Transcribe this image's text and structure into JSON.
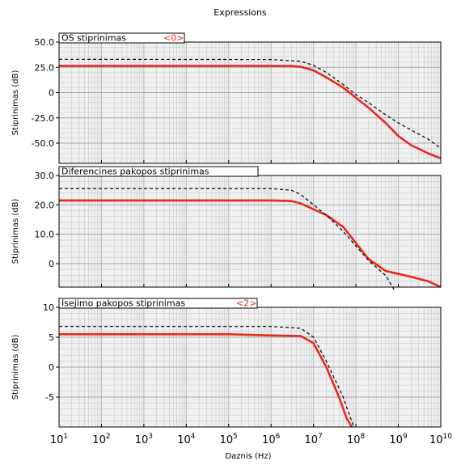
{
  "window_title": "Expressions",
  "x_axis": {
    "label": "Daznis (Hz)",
    "scale": "log",
    "range": [
      10,
      10000000000
    ],
    "tick_exponents": [
      1,
      2,
      3,
      4,
      5,
      6,
      7,
      8,
      9,
      10
    ],
    "tick_base": "10"
  },
  "colors": {
    "series_solid": "#e8291f",
    "series_dashed": "#000000",
    "grid": "#c8c8c8",
    "plot_bg": "#f0f0f0"
  },
  "chart_data": [
    {
      "type": "line",
      "tab_label": "OS stiprinimas",
      "tab_marker": "<0>",
      "ylabel": "Stiprinimas (dB)",
      "xlabel": "",
      "xscale": "log",
      "ylim": [
        -70,
        50
      ],
      "yticks": [
        50,
        25,
        0,
        -25,
        -50
      ],
      "ytick_labels": [
        "50.0",
        "25.0",
        "0",
        "-25.0",
        "-50.0"
      ],
      "grid": true,
      "series": [
        {
          "style": "solid-red",
          "x": [
            10,
            1000000,
            3000000,
            5000000,
            10000000,
            20000000,
            50000000,
            100000000,
            200000000,
            500000000,
            1000000000,
            2000000000,
            5000000000,
            10000000000
          ],
          "y": [
            26.5,
            26.5,
            26.3,
            25.5,
            22,
            15,
            5,
            -5,
            -15,
            -30,
            -43,
            -52,
            -60,
            -65
          ]
        },
        {
          "style": "dashed-black",
          "x": [
            10,
            1000000,
            5000000,
            10000000,
            20000000,
            50000000,
            100000000,
            200000000,
            500000000,
            1000000000,
            2000000000,
            5000000000,
            10000000000
          ],
          "y": [
            33,
            32.7,
            31,
            27,
            20,
            8,
            -2,
            -10,
            -22,
            -30,
            -37,
            -46,
            -55
          ]
        }
      ]
    },
    {
      "type": "line",
      "tab_label": "Diferencines pakopos stiprinimas",
      "tab_marker": "",
      "ylabel": "Stiprinimas (dB)",
      "xlabel": "",
      "xscale": "log",
      "ylim": [
        -8,
        30
      ],
      "yticks": [
        30,
        20,
        10,
        0
      ],
      "ytick_labels": [
        "30.0",
        "20.0",
        "10.0",
        "0"
      ],
      "grid": true,
      "series": [
        {
          "style": "solid-red",
          "x": [
            10,
            1000000,
            3000000,
            5000000,
            10000000,
            20000000,
            50000000,
            100000000,
            200000000,
            500000000,
            1000000000,
            2000000000,
            5000000000,
            10000000000
          ],
          "y": [
            21.5,
            21.5,
            21.3,
            20.5,
            18.5,
            16.5,
            12.5,
            7,
            1.5,
            -2.5,
            -3.5,
            -4.5,
            -6,
            -8
          ]
        },
        {
          "style": "dashed-black",
          "x": [
            10,
            1000000,
            3000000,
            5000000,
            10000000,
            20000000,
            50000000,
            100000000,
            200000000,
            500000000,
            800000000
          ],
          "y": [
            25.5,
            25.5,
            25,
            23.5,
            20,
            16.5,
            11,
            6,
            1,
            -4,
            -9
          ]
        }
      ]
    },
    {
      "type": "line",
      "tab_label": "Isejimo pakopos stiprinimas",
      "tab_marker": "<2>",
      "ylabel": "Stiprinimas (dB)",
      "xlabel": "",
      "xscale": "log",
      "ylim": [
        -10,
        10
      ],
      "yticks": [
        10,
        5,
        0,
        -5
      ],
      "ytick_labels": [
        "10",
        "5",
        "0",
        "-5"
      ],
      "grid": true,
      "series": [
        {
          "style": "solid-red",
          "x": [
            10,
            100000,
            1000000,
            5000000,
            10000000,
            20000000,
            40000000,
            60000000,
            80000000
          ],
          "y": [
            5.5,
            5.5,
            5.3,
            5.2,
            4,
            0,
            -5,
            -8.5,
            -10
          ]
        },
        {
          "style": "dashed-black",
          "x": [
            10,
            1000000,
            5000000,
            10000000,
            20000000,
            50000000,
            70000000,
            90000000
          ],
          "y": [
            6.8,
            6.8,
            6.5,
            5,
            1,
            -5,
            -8,
            -10
          ]
        }
      ]
    }
  ]
}
